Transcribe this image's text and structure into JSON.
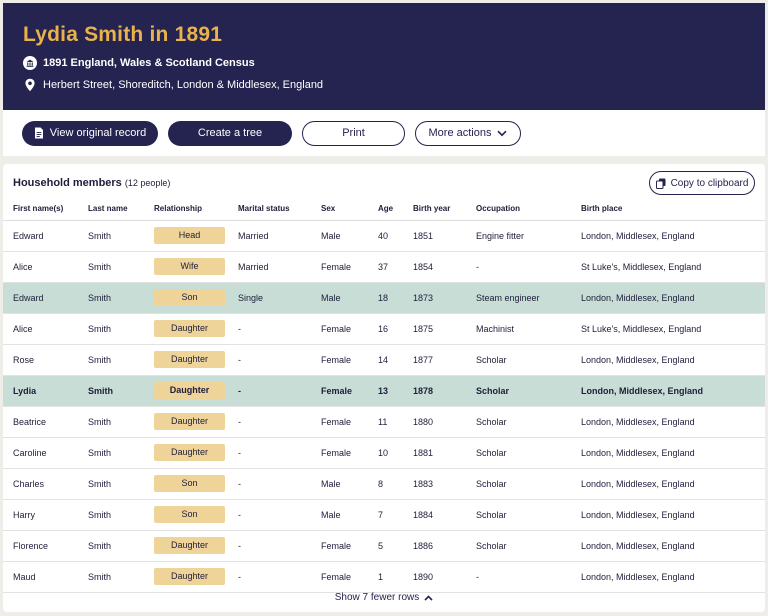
{
  "header": {
    "title": "Lydia Smith in 1891",
    "census": "1891 England, Wales & Scotland Census",
    "place": "Herbert Street, Shoreditch, London & Middlesex, England"
  },
  "actions": {
    "view_original": "View original record",
    "create_tree": "Create a tree",
    "print": "Print",
    "more_actions": "More actions"
  },
  "household": {
    "title": "Household members",
    "count": "(12 people)",
    "copy_label": "Copy to clipboard",
    "columns": [
      "First name(s)",
      "Last name",
      "Relationship",
      "Marital status",
      "Sex",
      "Age",
      "Birth year",
      "Occupation",
      "Birth place"
    ],
    "rows": [
      {
        "first": "Edward",
        "last": "Smith",
        "rel": "Head",
        "marital": "Married",
        "sex": "Male",
        "age": "40",
        "year": "1851",
        "occupation": "Engine fitter",
        "place": "London, Middlesex, England"
      },
      {
        "first": "Alice",
        "last": "Smith",
        "rel": "Wife",
        "marital": "Married",
        "sex": "Female",
        "age": "37",
        "year": "1854",
        "occupation": "-",
        "place": "St Luke's, Middlesex, England"
      },
      {
        "first": "Edward",
        "last": "Smith",
        "rel": "Son",
        "marital": "Single",
        "sex": "Male",
        "age": "18",
        "year": "1873",
        "occupation": "Steam engineer",
        "place": "London, Middlesex, England"
      },
      {
        "first": "Alice",
        "last": "Smith",
        "rel": "Daughter",
        "marital": "-",
        "sex": "Female",
        "age": "16",
        "year": "1875",
        "occupation": "Machinist",
        "place": "St Luke's, Middlesex, England"
      },
      {
        "first": "Rose",
        "last": "Smith",
        "rel": "Daughter",
        "marital": "-",
        "sex": "Female",
        "age": "14",
        "year": "1877",
        "occupation": "Scholar",
        "place": "London, Middlesex, England"
      },
      {
        "first": "Lydia",
        "last": "Smith",
        "rel": "Daughter",
        "marital": "-",
        "sex": "Female",
        "age": "13",
        "year": "1878",
        "occupation": "Scholar",
        "place": "London, Middlesex, England"
      },
      {
        "first": "Beatrice",
        "last": "Smith",
        "rel": "Daughter",
        "marital": "-",
        "sex": "Female",
        "age": "11",
        "year": "1880",
        "occupation": "Scholar",
        "place": "London, Middlesex, England"
      },
      {
        "first": "Caroline",
        "last": "Smith",
        "rel": "Daughter",
        "marital": "-",
        "sex": "Female",
        "age": "10",
        "year": "1881",
        "occupation": "Scholar",
        "place": "London, Middlesex, England"
      },
      {
        "first": "Charles",
        "last": "Smith",
        "rel": "Son",
        "marital": "-",
        "sex": "Male",
        "age": "8",
        "year": "1883",
        "occupation": "Scholar",
        "place": "London, Middlesex, England"
      },
      {
        "first": "Harry",
        "last": "Smith",
        "rel": "Son",
        "marital": "-",
        "sex": "Male",
        "age": "7",
        "year": "1884",
        "occupation": "Scholar",
        "place": "London, Middlesex, England"
      },
      {
        "first": "Florence",
        "last": "Smith",
        "rel": "Daughter",
        "marital": "-",
        "sex": "Female",
        "age": "5",
        "year": "1886",
        "occupation": "Scholar",
        "place": "London, Middlesex, England"
      },
      {
        "first": "Maud",
        "last": "Smith",
        "rel": "Daughter",
        "marital": "-",
        "sex": "Female",
        "age": "1",
        "year": "1890",
        "occupation": "-",
        "place": "London, Middlesex, England"
      }
    ],
    "highlighted_rows": [
      2,
      5
    ],
    "bold_row": 5,
    "show_fewer": "Show 7 fewer rows"
  },
  "colors": {
    "navy": "#25234f",
    "gold": "#e9b24b",
    "badge": "#efd49a",
    "highlight": "#c7ddd5"
  }
}
